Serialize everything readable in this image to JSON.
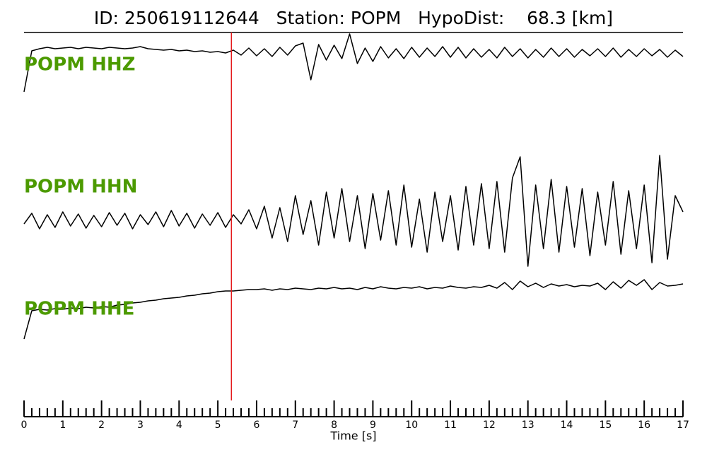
{
  "chart_data": {
    "type": "line",
    "title": "ID: 250619112644   Station: POPM   HypoDist:    68.3 [km]",
    "xlabel": "Time [s]",
    "xlim": [
      0,
      17
    ],
    "xticks": [
      0,
      1,
      2,
      3,
      4,
      5,
      6,
      7,
      8,
      9,
      10,
      11,
      12,
      13,
      14,
      15,
      16,
      17
    ],
    "xminorticks": [
      0.2,
      0.4,
      0.6,
      0.8,
      1.2,
      1.4,
      1.6,
      1.8,
      2.2,
      2.4,
      2.6,
      2.8,
      3.2,
      3.4,
      3.6,
      3.8,
      4.2,
      4.4,
      4.6,
      4.8,
      5.2,
      5.4,
      5.6,
      5.8,
      6.2,
      6.4,
      6.6,
      6.8,
      7.2,
      7.4,
      7.6,
      7.8,
      8.2,
      8.4,
      8.6,
      8.8,
      9.2,
      9.4,
      9.6,
      9.8,
      10.2,
      10.4,
      10.6,
      10.8,
      11.2,
      11.4,
      11.6,
      11.8,
      12.2,
      12.4,
      12.6,
      12.8,
      13.2,
      13.4,
      13.6,
      13.8,
      14.2,
      14.4,
      14.6,
      14.8,
      15.2,
      15.4,
      15.6,
      15.8,
      16.2,
      16.4,
      16.6,
      16.8
    ],
    "pick_x": 5.35,
    "pick_color": "#e41a1c",
    "label_color": "#4c9a00",
    "x": [
      0,
      0.2,
      0.4,
      0.6,
      0.8,
      1,
      1.2,
      1.4,
      1.6,
      1.8,
      2,
      2.2,
      2.4,
      2.6,
      2.8,
      3,
      3.2,
      3.4,
      3.6,
      3.8,
      4,
      4.2,
      4.4,
      4.6,
      4.8,
      5,
      5.2,
      5.4,
      5.6,
      5.8,
      6,
      6.2,
      6.4,
      6.6,
      6.8,
      7,
      7.2,
      7.4,
      7.6,
      7.8,
      8,
      8.2,
      8.4,
      8.6,
      8.8,
      9,
      9.2,
      9.4,
      9.6,
      9.8,
      10,
      10.2,
      10.4,
      10.6,
      10.8,
      11,
      11.2,
      11.4,
      11.6,
      11.8,
      12,
      12.2,
      12.4,
      12.6,
      12.8,
      13,
      13.2,
      13.4,
      13.6,
      13.8,
      14,
      14.2,
      14.4,
      14.6,
      14.8,
      15,
      15.2,
      15.4,
      15.6,
      15.8,
      16,
      16.2,
      16.4,
      16.6,
      16.8,
      17
    ],
    "series": [
      {
        "name": "POPM HHZ",
        "color": "#000000",
        "values": [
          -55,
          3,
          6,
          8,
          6,
          7,
          8,
          6,
          8,
          7,
          6,
          8,
          7,
          6,
          7,
          9,
          6,
          5,
          4,
          5,
          3,
          4,
          2,
          3,
          1,
          2,
          0,
          4,
          -3,
          7,
          -4,
          6,
          -5,
          8,
          -3,
          10,
          14,
          -38,
          12,
          -10,
          11,
          -8,
          27,
          -15,
          7,
          -12,
          9,
          -7,
          6,
          -8,
          8,
          -6,
          7,
          -5,
          9,
          -6,
          8,
          -7,
          6,
          -6,
          5,
          -7,
          8,
          -5,
          6,
          -7,
          5,
          -6,
          7,
          -5,
          6,
          -6,
          5,
          -4,
          6,
          -5,
          7,
          -6,
          5,
          -5,
          6,
          -4,
          5,
          -6,
          4,
          -5
        ]
      },
      {
        "name": "POPM HHN",
        "color": "#000000",
        "values": [
          -5,
          10,
          -12,
          8,
          -10,
          12,
          -8,
          9,
          -11,
          7,
          -9,
          11,
          -7,
          10,
          -12,
          8,
          -6,
          12,
          -9,
          14,
          -8,
          10,
          -11,
          9,
          -7,
          11,
          -10,
          8,
          -5,
          15,
          -12,
          20,
          -25,
          18,
          -30,
          35,
          -20,
          28,
          -35,
          40,
          -25,
          45,
          -30,
          35,
          -40,
          38,
          -28,
          42,
          -35,
          50,
          -38,
          30,
          -45,
          40,
          -30,
          35,
          -42,
          48,
          -35,
          52,
          -40,
          55,
          -45,
          60,
          90,
          -65,
          50,
          -40,
          58,
          -45,
          48,
          -38,
          45,
          -50,
          40,
          -35,
          55,
          -48,
          42,
          -40,
          50,
          -60,
          92,
          -55,
          35,
          12
        ]
      },
      {
        "name": "POPM HHE",
        "color": "#000000",
        "values": [
          -40,
          0,
          2,
          1,
          3,
          2,
          4,
          3,
          5,
          4,
          6,
          5,
          8,
          9,
          11,
          12,
          14,
          15,
          17,
          18,
          19,
          21,
          22,
          24,
          25,
          27,
          28,
          28,
          29,
          30,
          30,
          31,
          29,
          31,
          30,
          32,
          31,
          30,
          32,
          31,
          33,
          31,
          32,
          30,
          33,
          31,
          34,
          32,
          31,
          33,
          32,
          34,
          31,
          33,
          32,
          35,
          33,
          32,
          34,
          33,
          36,
          32,
          40,
          30,
          42,
          34,
          39,
          33,
          38,
          35,
          37,
          34,
          36,
          35,
          39,
          30,
          41,
          32,
          43,
          36,
          44,
          30,
          40,
          35,
          36,
          38
        ]
      }
    ]
  }
}
